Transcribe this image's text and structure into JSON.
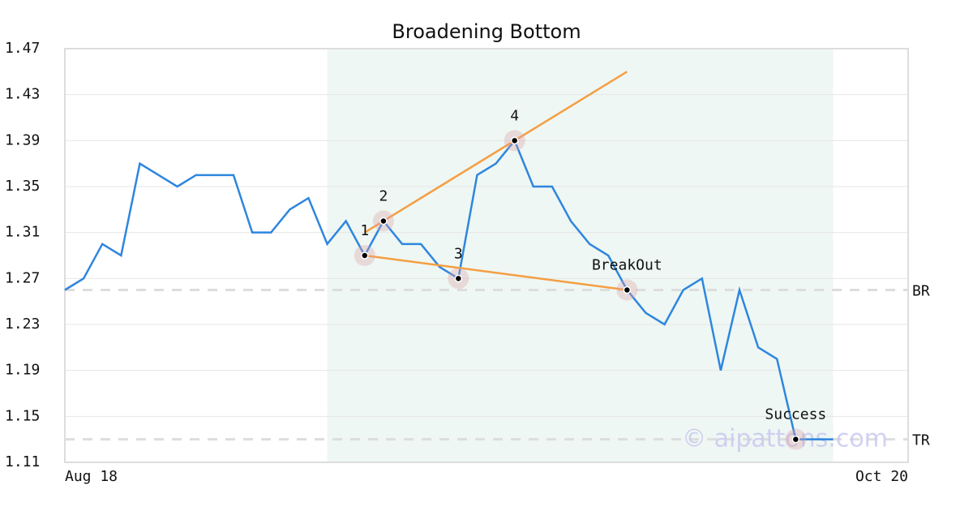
{
  "chart_data": {
    "type": "line",
    "title": "Broadening Bottom",
    "categories": [
      "Aug 18",
      null,
      null,
      null,
      null,
      null,
      null,
      null,
      null,
      null,
      null,
      null,
      null,
      null,
      null,
      null,
      null,
      null,
      null,
      null,
      null,
      null,
      null,
      null,
      null,
      null,
      null,
      null,
      null,
      null,
      null,
      null,
      null,
      null,
      null,
      null,
      null,
      null,
      null,
      null,
      null,
      null,
      null,
      null,
      null,
      "Oct 20"
    ],
    "series": [
      {
        "color": "#2e86de",
        "values": [
          1.26,
          1.27,
          1.3,
          1.29,
          1.37,
          1.36,
          1.35,
          1.36,
          1.36,
          1.36,
          1.31,
          1.31,
          1.33,
          1.34,
          1.3,
          1.32,
          1.29,
          1.32,
          1.3,
          1.3,
          1.28,
          1.27,
          1.36,
          1.37,
          1.39,
          1.35,
          1.35,
          1.32,
          1.3,
          1.29,
          1.26,
          1.24,
          1.23,
          1.26,
          1.27,
          1.19,
          1.26,
          1.21,
          1.2,
          1.13,
          1.13,
          1.13,
          null,
          null,
          null,
          null
        ]
      }
    ],
    "ylim": [
      1.11,
      1.47
    ],
    "yticks": [
      1.11,
      1.15,
      1.19,
      1.23,
      1.27,
      1.31,
      1.35,
      1.39,
      1.43,
      1.47
    ],
    "grid": true,
    "highlight": [
      14,
      41
    ],
    "highlight_color": "#eef7f3",
    "markers": [
      {
        "index": 16,
        "label": "1"
      },
      {
        "index": 17,
        "label": "2"
      },
      {
        "index": 21,
        "label": "3"
      },
      {
        "index": 24,
        "label": "4"
      },
      {
        "index": 30,
        "label": "BreakOut"
      },
      {
        "index": 39,
        "label": "Success"
      }
    ],
    "trendlines": [
      {
        "x": [
          16,
          30
        ],
        "y": [
          1.31,
          1.45
        ],
        "color": "#f59e42"
      },
      {
        "x": [
          16,
          30
        ],
        "y": [
          1.29,
          1.26
        ],
        "color": "#f59e42"
      }
    ],
    "levels": [
      {
        "value": 1.26,
        "label": "BR"
      },
      {
        "value": 1.13,
        "label": "TR"
      }
    ],
    "watermark": "© aipattons.com"
  }
}
